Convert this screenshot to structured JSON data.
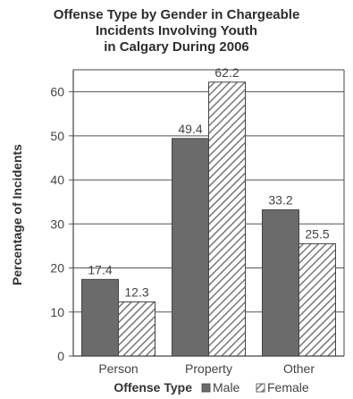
{
  "chart_data": {
    "type": "bar",
    "title_lines": [
      "Offense Type by Gender in Chargeable",
      "Incidents Involving Youth",
      "in Calgary During 2006"
    ],
    "categories": [
      "Person",
      "Property",
      "Other"
    ],
    "series": [
      {
        "name": "Male",
        "values": [
          17.4,
          49.4,
          33.2
        ]
      },
      {
        "name": "Female",
        "values": [
          12.3,
          62.2,
          25.5
        ]
      }
    ],
    "value_labels": [
      [
        "17.4",
        "49.4",
        "33.2"
      ],
      [
        "12.3",
        "62.2",
        "25.5"
      ]
    ],
    "xlabel": "Offense Type",
    "ylabel": "Percentage of Incidents",
    "ylim": [
      0,
      65
    ],
    "yticks": [
      0,
      10,
      20,
      30,
      40,
      50,
      60
    ],
    "legend_placement": "bottom-right",
    "colors": {
      "male": "#6b6b6b",
      "female_hatch": "#777777",
      "axis": "#444444"
    }
  }
}
